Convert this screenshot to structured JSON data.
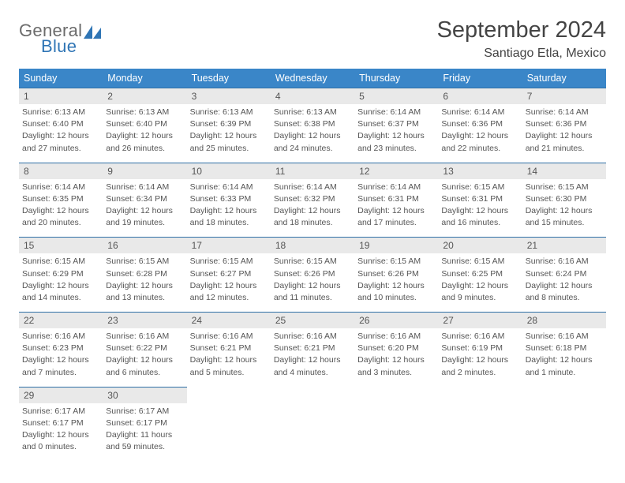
{
  "logo": {
    "general": "General",
    "blue": "Blue"
  },
  "title": "September 2024",
  "location": "Santiago Etla, Mexico",
  "colors": {
    "header_bg": "#3a86c8",
    "daynum_bg": "#e9e9e9",
    "daynum_border": "#2f6fa6",
    "text": "#555555",
    "logo_blue": "#2f75b5",
    "logo_gray": "#6b6b6b"
  },
  "daynames": [
    "Sunday",
    "Monday",
    "Tuesday",
    "Wednesday",
    "Thursday",
    "Friday",
    "Saturday"
  ],
  "weeks": [
    [
      {
        "n": "1",
        "sr": "Sunrise: 6:13 AM",
        "ss": "Sunset: 6:40 PM",
        "d1": "Daylight: 12 hours",
        "d2": "and 27 minutes."
      },
      {
        "n": "2",
        "sr": "Sunrise: 6:13 AM",
        "ss": "Sunset: 6:40 PM",
        "d1": "Daylight: 12 hours",
        "d2": "and 26 minutes."
      },
      {
        "n": "3",
        "sr": "Sunrise: 6:13 AM",
        "ss": "Sunset: 6:39 PM",
        "d1": "Daylight: 12 hours",
        "d2": "and 25 minutes."
      },
      {
        "n": "4",
        "sr": "Sunrise: 6:13 AM",
        "ss": "Sunset: 6:38 PM",
        "d1": "Daylight: 12 hours",
        "d2": "and 24 minutes."
      },
      {
        "n": "5",
        "sr": "Sunrise: 6:14 AM",
        "ss": "Sunset: 6:37 PM",
        "d1": "Daylight: 12 hours",
        "d2": "and 23 minutes."
      },
      {
        "n": "6",
        "sr": "Sunrise: 6:14 AM",
        "ss": "Sunset: 6:36 PM",
        "d1": "Daylight: 12 hours",
        "d2": "and 22 minutes."
      },
      {
        "n": "7",
        "sr": "Sunrise: 6:14 AM",
        "ss": "Sunset: 6:36 PM",
        "d1": "Daylight: 12 hours",
        "d2": "and 21 minutes."
      }
    ],
    [
      {
        "n": "8",
        "sr": "Sunrise: 6:14 AM",
        "ss": "Sunset: 6:35 PM",
        "d1": "Daylight: 12 hours",
        "d2": "and 20 minutes."
      },
      {
        "n": "9",
        "sr": "Sunrise: 6:14 AM",
        "ss": "Sunset: 6:34 PM",
        "d1": "Daylight: 12 hours",
        "d2": "and 19 minutes."
      },
      {
        "n": "10",
        "sr": "Sunrise: 6:14 AM",
        "ss": "Sunset: 6:33 PM",
        "d1": "Daylight: 12 hours",
        "d2": "and 18 minutes."
      },
      {
        "n": "11",
        "sr": "Sunrise: 6:14 AM",
        "ss": "Sunset: 6:32 PM",
        "d1": "Daylight: 12 hours",
        "d2": "and 18 minutes."
      },
      {
        "n": "12",
        "sr": "Sunrise: 6:14 AM",
        "ss": "Sunset: 6:31 PM",
        "d1": "Daylight: 12 hours",
        "d2": "and 17 minutes."
      },
      {
        "n": "13",
        "sr": "Sunrise: 6:15 AM",
        "ss": "Sunset: 6:31 PM",
        "d1": "Daylight: 12 hours",
        "d2": "and 16 minutes."
      },
      {
        "n": "14",
        "sr": "Sunrise: 6:15 AM",
        "ss": "Sunset: 6:30 PM",
        "d1": "Daylight: 12 hours",
        "d2": "and 15 minutes."
      }
    ],
    [
      {
        "n": "15",
        "sr": "Sunrise: 6:15 AM",
        "ss": "Sunset: 6:29 PM",
        "d1": "Daylight: 12 hours",
        "d2": "and 14 minutes."
      },
      {
        "n": "16",
        "sr": "Sunrise: 6:15 AM",
        "ss": "Sunset: 6:28 PM",
        "d1": "Daylight: 12 hours",
        "d2": "and 13 minutes."
      },
      {
        "n": "17",
        "sr": "Sunrise: 6:15 AM",
        "ss": "Sunset: 6:27 PM",
        "d1": "Daylight: 12 hours",
        "d2": "and 12 minutes."
      },
      {
        "n": "18",
        "sr": "Sunrise: 6:15 AM",
        "ss": "Sunset: 6:26 PM",
        "d1": "Daylight: 12 hours",
        "d2": "and 11 minutes."
      },
      {
        "n": "19",
        "sr": "Sunrise: 6:15 AM",
        "ss": "Sunset: 6:26 PM",
        "d1": "Daylight: 12 hours",
        "d2": "and 10 minutes."
      },
      {
        "n": "20",
        "sr": "Sunrise: 6:15 AM",
        "ss": "Sunset: 6:25 PM",
        "d1": "Daylight: 12 hours",
        "d2": "and 9 minutes."
      },
      {
        "n": "21",
        "sr": "Sunrise: 6:16 AM",
        "ss": "Sunset: 6:24 PM",
        "d1": "Daylight: 12 hours",
        "d2": "and 8 minutes."
      }
    ],
    [
      {
        "n": "22",
        "sr": "Sunrise: 6:16 AM",
        "ss": "Sunset: 6:23 PM",
        "d1": "Daylight: 12 hours",
        "d2": "and 7 minutes."
      },
      {
        "n": "23",
        "sr": "Sunrise: 6:16 AM",
        "ss": "Sunset: 6:22 PM",
        "d1": "Daylight: 12 hours",
        "d2": "and 6 minutes."
      },
      {
        "n": "24",
        "sr": "Sunrise: 6:16 AM",
        "ss": "Sunset: 6:21 PM",
        "d1": "Daylight: 12 hours",
        "d2": "and 5 minutes."
      },
      {
        "n": "25",
        "sr": "Sunrise: 6:16 AM",
        "ss": "Sunset: 6:21 PM",
        "d1": "Daylight: 12 hours",
        "d2": "and 4 minutes."
      },
      {
        "n": "26",
        "sr": "Sunrise: 6:16 AM",
        "ss": "Sunset: 6:20 PM",
        "d1": "Daylight: 12 hours",
        "d2": "and 3 minutes."
      },
      {
        "n": "27",
        "sr": "Sunrise: 6:16 AM",
        "ss": "Sunset: 6:19 PM",
        "d1": "Daylight: 12 hours",
        "d2": "and 2 minutes."
      },
      {
        "n": "28",
        "sr": "Sunrise: 6:16 AM",
        "ss": "Sunset: 6:18 PM",
        "d1": "Daylight: 12 hours",
        "d2": "and 1 minute."
      }
    ],
    [
      {
        "n": "29",
        "sr": "Sunrise: 6:17 AM",
        "ss": "Sunset: 6:17 PM",
        "d1": "Daylight: 12 hours",
        "d2": "and 0 minutes."
      },
      {
        "n": "30",
        "sr": "Sunrise: 6:17 AM",
        "ss": "Sunset: 6:17 PM",
        "d1": "Daylight: 11 hours",
        "d2": "and 59 minutes."
      },
      {
        "empty": true
      },
      {
        "empty": true
      },
      {
        "empty": true
      },
      {
        "empty": true
      },
      {
        "empty": true
      }
    ]
  ]
}
